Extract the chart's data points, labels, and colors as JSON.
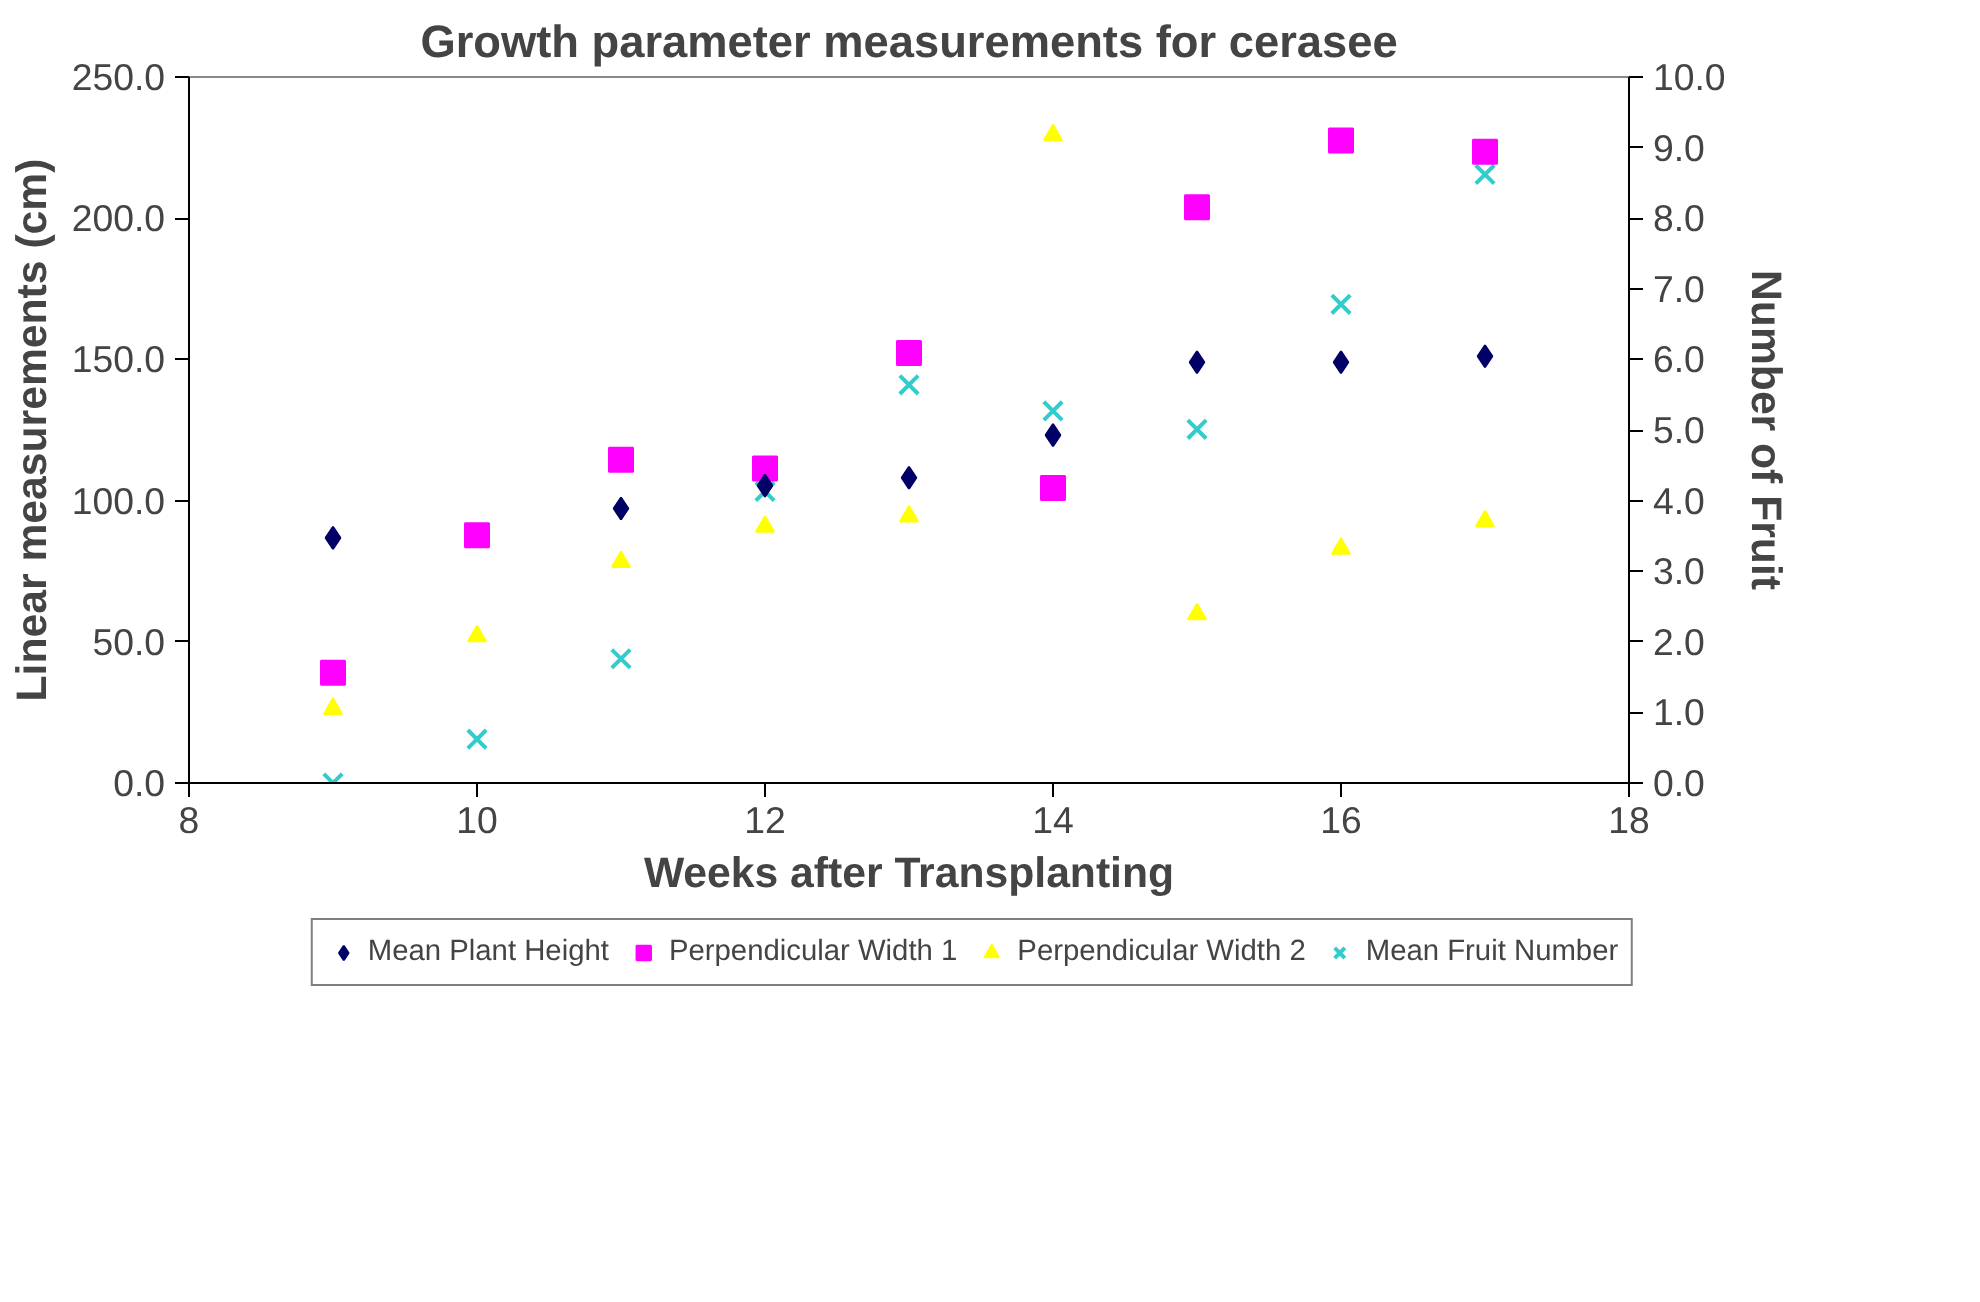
{
  "chart_data": {
    "type": "scatter",
    "title": "Growth parameter measurements for cerasee",
    "xlabel": "Weeks after Transplanting",
    "ylabel": "Linear measurements (cm)",
    "y2label": "Number of Fruit",
    "x": [
      9,
      10,
      11,
      12,
      13,
      14,
      15,
      16,
      17
    ],
    "series": [
      {
        "name": "Mean Plant Height",
        "color": "#000066",
        "marker": "diamond",
        "values": [
          86.8,
          null,
          97.2,
          105.3,
          108.1,
          123.2,
          149.0,
          149.0,
          151.1
        ]
      },
      {
        "name": "Perpendicular Width 1",
        "color": "#ff00ff",
        "marker": "square",
        "values": [
          39.0,
          87.7,
          114.5,
          111.4,
          152.3,
          104.5,
          203.9,
          227.5,
          223.5
        ]
      },
      {
        "name": "Perpendicular Width 2",
        "color": "#ffff00",
        "marker": "triangle",
        "values": [
          26.3,
          52.0,
          78.3,
          90.8,
          94.4,
          229.4,
          59.8,
          83.0,
          92.7
        ]
      },
      {
        "name": "Mean Fruit Number",
        "color": "#33cccc",
        "marker": "cross",
        "axis": "y2",
        "values": [
          0.0,
          0.62,
          1.76,
          4.13,
          5.64,
          5.27,
          5.01,
          6.78,
          8.62
        ]
      }
    ],
    "xlim": [
      8,
      18
    ],
    "xticks": [
      8,
      10,
      12,
      14,
      16,
      18
    ],
    "ylim": [
      0,
      250
    ],
    "yticks": [
      {
        "value": 0,
        "label": "0.0"
      },
      {
        "value": 50,
        "label": "50.0"
      },
      {
        "value": 100,
        "label": "100.0"
      },
      {
        "value": 150,
        "label": "150.0"
      },
      {
        "value": 200,
        "label": "200.0"
      },
      {
        "value": 250,
        "label": "250.0"
      }
    ],
    "y2lim": [
      0,
      10
    ],
    "y2ticks": [
      {
        "value": 0,
        "label": "0.0"
      },
      {
        "value": 1,
        "label": "1.0"
      },
      {
        "value": 2,
        "label": "2.0"
      },
      {
        "value": 3,
        "label": "3.0"
      },
      {
        "value": 4,
        "label": "4.0"
      },
      {
        "value": 5,
        "label": "5.0"
      },
      {
        "value": 6,
        "label": "6.0"
      },
      {
        "value": 7,
        "label": "7.0"
      },
      {
        "value": 8,
        "label": "8.0"
      },
      {
        "value": 9,
        "label": "9.0"
      },
      {
        "value": 10,
        "label": "10.0"
      }
    ],
    "grid": false,
    "legend": "bottom"
  }
}
